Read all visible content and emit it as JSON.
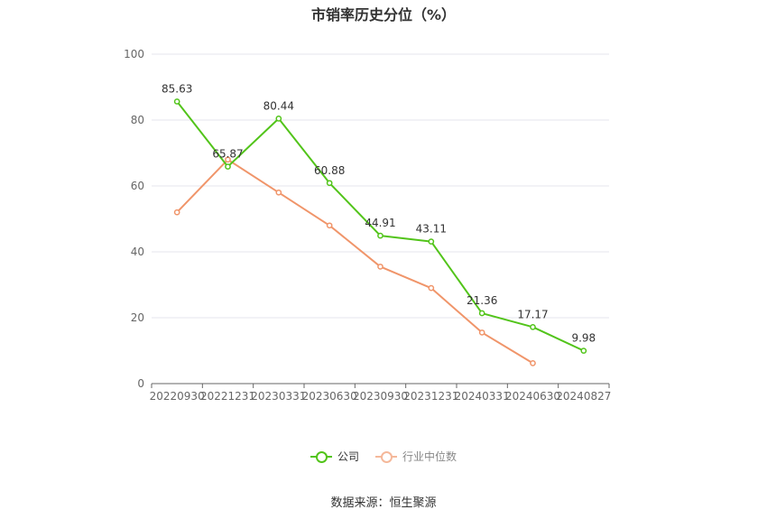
{
  "chart_data": {
    "type": "line",
    "title": "市销率历史分位（%）",
    "categories": [
      "20220930",
      "20221231",
      "20230331",
      "20230630",
      "20230930",
      "20231231",
      "20240331",
      "20240630",
      "20240827"
    ],
    "ylim": [
      0,
      100
    ],
    "yticks": [
      0,
      20,
      40,
      60,
      80,
      100
    ],
    "grid": true,
    "legend_position": "bottom",
    "series": [
      {
        "name": "公司",
        "color": "#52c41a",
        "values": [
          85.63,
          65.87,
          80.44,
          60.88,
          44.91,
          43.11,
          21.36,
          17.17,
          9.98
        ],
        "labels": [
          "85.63",
          "65.87",
          "80.44",
          "60.88",
          "44.91",
          "43.11",
          "21.36",
          "17.17",
          "9.98"
        ]
      },
      {
        "name": "行业中位数",
        "color": "#f0956a",
        "values": [
          52,
          68,
          58,
          48,
          35.5,
          29,
          15.5,
          6.2,
          null
        ]
      }
    ]
  },
  "legend": {
    "company": "公司",
    "industry": "行业中位数"
  },
  "source": "数据来源：恒生聚源"
}
